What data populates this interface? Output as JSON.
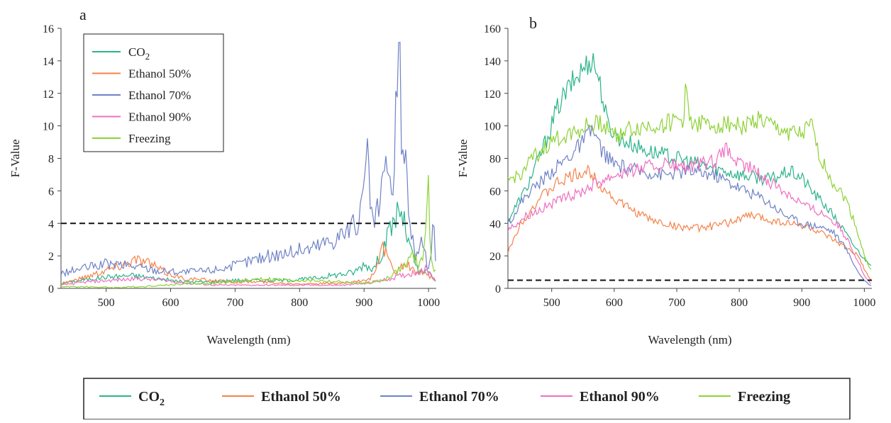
{
  "colors": {
    "CO2": "#2bb38a",
    "Ethanol 50%": "#f5824a",
    "Ethanol 70%": "#6f82c6",
    "Ethanol 90%": "#ee6fc0",
    "Freezing": "#8ed136",
    "threshold": "#111111"
  },
  "legend": {
    "entries": [
      {
        "key": "CO2",
        "main": "CO",
        "sub": "2"
      },
      {
        "key": "Ethanol 50%",
        "main": "Ethanol 50%",
        "sub": ""
      },
      {
        "key": "Ethanol 70%",
        "main": "Ethanol 70%",
        "sub": ""
      },
      {
        "key": "Ethanol 90%",
        "main": "Ethanol 90%",
        "sub": ""
      },
      {
        "key": "Freezing",
        "main": "Freezing",
        "sub": ""
      }
    ]
  },
  "chart_data": [
    {
      "panel": "a",
      "type": "line",
      "xlabel": "Wavelength (nm)",
      "ylabel": "F-Value",
      "xlim": [
        430,
        1012
      ],
      "ylim": [
        0,
        16
      ],
      "xticks": [
        500,
        600,
        700,
        800,
        900,
        1000
      ],
      "yticks": [
        0,
        2,
        4,
        6,
        8,
        10,
        12,
        14,
        16
      ],
      "legend_position": "top-left",
      "threshold": {
        "y": 4,
        "x_range": [
          430,
          995
        ],
        "style": "dashed"
      },
      "series": [
        {
          "name": "CO2",
          "points": [
            [
              430,
              0.3
            ],
            [
              460,
              0.5
            ],
            [
              500,
              0.7
            ],
            [
              540,
              0.8
            ],
            [
              580,
              0.6
            ],
            [
              620,
              0.4
            ],
            [
              660,
              0.4
            ],
            [
              700,
              0.5
            ],
            [
              740,
              0.5
            ],
            [
              780,
              0.5
            ],
            [
              820,
              0.6
            ],
            [
              850,
              0.8
            ],
            [
              870,
              0.9
            ],
            [
              885,
              1.0
            ],
            [
              900,
              1.5
            ],
            [
              915,
              1.2
            ],
            [
              925,
              2.0
            ],
            [
              935,
              3.0
            ],
            [
              945,
              4.0
            ],
            [
              955,
              5.0
            ],
            [
              962,
              4.0
            ],
            [
              968,
              3.0
            ],
            [
              975,
              2.0
            ],
            [
              985,
              1.0
            ],
            [
              1000,
              1.0
            ],
            [
              1010,
              0.5
            ]
          ]
        },
        {
          "name": "Ethanol 50%",
          "points": [
            [
              430,
              0.3
            ],
            [
              460,
              0.6
            ],
            [
              490,
              1.0
            ],
            [
              520,
              1.4
            ],
            [
              545,
              1.8
            ],
            [
              565,
              1.6
            ],
            [
              590,
              1.0
            ],
            [
              620,
              0.6
            ],
            [
              660,
              0.5
            ],
            [
              700,
              0.4
            ],
            [
              740,
              0.4
            ],
            [
              780,
              0.3
            ],
            [
              820,
              0.3
            ],
            [
              860,
              0.3
            ],
            [
              890,
              0.4
            ],
            [
              910,
              0.6
            ],
            [
              930,
              2.5
            ],
            [
              945,
              1.0
            ],
            [
              965,
              1.5
            ],
            [
              980,
              1.0
            ],
            [
              1000,
              0.8
            ],
            [
              1010,
              0.5
            ]
          ]
        },
        {
          "name": "Ethanol 70%",
          "points": [
            [
              430,
              0.9
            ],
            [
              460,
              1.2
            ],
            [
              500,
              1.5
            ],
            [
              540,
              1.4
            ],
            [
              580,
              1.1
            ],
            [
              620,
              1.0
            ],
            [
              660,
              1.1
            ],
            [
              700,
              1.4
            ],
            [
              740,
              1.9
            ],
            [
              780,
              2.2
            ],
            [
              820,
              2.5
            ],
            [
              850,
              3.0
            ],
            [
              870,
              3.5
            ],
            [
              885,
              3.8
            ],
            [
              895,
              4.5
            ],
            [
              905,
              7.8
            ],
            [
              915,
              3.5
            ],
            [
              925,
              5.5
            ],
            [
              935,
              8.0
            ],
            [
              942,
              5.0
            ],
            [
              948,
              9.0
            ],
            [
              955,
              15.0
            ],
            [
              960,
              7.0
            ],
            [
              965,
              9.5
            ],
            [
              970,
              4.0
            ],
            [
              980,
              2.0
            ],
            [
              990,
              3.0
            ],
            [
              1000,
              1.0
            ],
            [
              1008,
              4.0
            ],
            [
              1012,
              0.5
            ]
          ]
        },
        {
          "name": "Ethanol 90%",
          "points": [
            [
              430,
              0.2
            ],
            [
              470,
              0.4
            ],
            [
              510,
              0.5
            ],
            [
              550,
              0.6
            ],
            [
              590,
              0.5
            ],
            [
              630,
              0.3
            ],
            [
              670,
              0.2
            ],
            [
              710,
              0.2
            ],
            [
              750,
              0.2
            ],
            [
              790,
              0.2
            ],
            [
              830,
              0.2
            ],
            [
              870,
              0.2
            ],
            [
              900,
              0.3
            ],
            [
              930,
              0.5
            ],
            [
              960,
              0.8
            ],
            [
              980,
              1.0
            ],
            [
              995,
              1.2
            ],
            [
              1005,
              0.8
            ],
            [
              1012,
              0.4
            ]
          ]
        },
        {
          "name": "Freezing",
          "points": [
            [
              430,
              0.1
            ],
            [
              470,
              0.1
            ],
            [
              510,
              0.05
            ],
            [
              550,
              0.1
            ],
            [
              590,
              0.2
            ],
            [
              630,
              0.3
            ],
            [
              670,
              0.3
            ],
            [
              700,
              0.4
            ],
            [
              740,
              0.6
            ],
            [
              780,
              0.5
            ],
            [
              820,
              0.5
            ],
            [
              860,
              0.4
            ],
            [
              900,
              0.3
            ],
            [
              930,
              0.5
            ],
            [
              950,
              1.0
            ],
            [
              965,
              1.5
            ],
            [
              975,
              2.0
            ],
            [
              985,
              1.5
            ],
            [
              995,
              2.5
            ],
            [
              1000,
              7.9
            ],
            [
              1003,
              2.0
            ],
            [
              1010,
              1.0
            ]
          ]
        }
      ]
    },
    {
      "panel": "b",
      "type": "line",
      "xlabel": "Wavelength (nm)",
      "ylabel": "F-Value",
      "xlim": [
        430,
        1012
      ],
      "ylim": [
        0,
        160
      ],
      "xticks": [
        500,
        600,
        700,
        800,
        900,
        1000
      ],
      "yticks": [
        0,
        20,
        40,
        60,
        80,
        100,
        120,
        140,
        160
      ],
      "threshold": {
        "y": 5,
        "x_range": [
          430,
          1012
        ],
        "style": "dashed"
      },
      "series": [
        {
          "name": "CO2",
          "points": [
            [
              430,
              42
            ],
            [
              460,
              62
            ],
            [
              490,
              90
            ],
            [
              510,
              112
            ],
            [
              530,
              125
            ],
            [
              550,
              135
            ],
            [
              565,
              142
            ],
            [
              575,
              130
            ],
            [
              590,
              100
            ],
            [
              610,
              92
            ],
            [
              650,
              85
            ],
            [
              700,
              80
            ],
            [
              750,
              75
            ],
            [
              800,
              70
            ],
            [
              850,
              67
            ],
            [
              880,
              72
            ],
            [
              900,
              68
            ],
            [
              920,
              58
            ],
            [
              940,
              50
            ],
            [
              960,
              40
            ],
            [
              980,
              28
            ],
            [
              1000,
              18
            ],
            [
              1010,
              15
            ]
          ]
        },
        {
          "name": "Ethanol 50%",
          "points": [
            [
              430,
              22
            ],
            [
              450,
              40
            ],
            [
              480,
              55
            ],
            [
              510,
              65
            ],
            [
              540,
              70
            ],
            [
              560,
              72
            ],
            [
              575,
              65
            ],
            [
              600,
              55
            ],
            [
              630,
              48
            ],
            [
              660,
              42
            ],
            [
              700,
              38
            ],
            [
              740,
              37
            ],
            [
              780,
              40
            ],
            [
              800,
              43
            ],
            [
              820,
              45
            ],
            [
              850,
              42
            ],
            [
              880,
              40
            ],
            [
              910,
              38
            ],
            [
              940,
              32
            ],
            [
              970,
              25
            ],
            [
              990,
              20
            ],
            [
              1000,
              12
            ],
            [
              1010,
              5
            ]
          ]
        },
        {
          "name": "Ethanol 70%",
          "points": [
            [
              430,
              40
            ],
            [
              460,
              58
            ],
            [
              500,
              72
            ],
            [
              530,
              82
            ],
            [
              550,
              90
            ],
            [
              565,
              98
            ],
            [
              580,
              85
            ],
            [
              600,
              76
            ],
            [
              640,
              72
            ],
            [
              680,
              70
            ],
            [
              720,
              72
            ],
            [
              760,
              70
            ],
            [
              800,
              62
            ],
            [
              840,
              55
            ],
            [
              870,
              46
            ],
            [
              900,
              40
            ],
            [
              930,
              38
            ],
            [
              950,
              35
            ],
            [
              970,
              25
            ],
            [
              990,
              10
            ],
            [
              1000,
              5
            ],
            [
              1008,
              2
            ]
          ]
        },
        {
          "name": "Ethanol 90%",
          "points": [
            [
              430,
              36
            ],
            [
              460,
              45
            ],
            [
              500,
              52
            ],
            [
              540,
              58
            ],
            [
              570,
              65
            ],
            [
              600,
              70
            ],
            [
              640,
              74
            ],
            [
              680,
              76
            ],
            [
              720,
              74
            ],
            [
              760,
              78
            ],
            [
              780,
              85
            ],
            [
              800,
              76
            ],
            [
              820,
              74
            ],
            [
              850,
              65
            ],
            [
              880,
              58
            ],
            [
              910,
              50
            ],
            [
              940,
              45
            ],
            [
              960,
              38
            ],
            [
              980,
              25
            ],
            [
              1000,
              8
            ],
            [
              1010,
              3
            ]
          ]
        },
        {
          "name": "Freezing",
          "points": [
            [
              430,
              66
            ],
            [
              450,
              70
            ],
            [
              470,
              80
            ],
            [
              500,
              90
            ],
            [
              530,
              96
            ],
            [
              560,
              100
            ],
            [
              580,
              102
            ],
            [
              600,
              95
            ],
            [
              630,
              98
            ],
            [
              660,
              100
            ],
            [
              690,
              102
            ],
            [
              710,
              104
            ],
            [
              715,
              124
            ],
            [
              720,
              104
            ],
            [
              750,
              100
            ],
            [
              780,
              102
            ],
            [
              810,
              100
            ],
            [
              830,
              104
            ],
            [
              860,
              98
            ],
            [
              880,
              96
            ],
            [
              900,
              94
            ],
            [
              915,
              100
            ],
            [
              930,
              80
            ],
            [
              950,
              65
            ],
            [
              970,
              55
            ],
            [
              985,
              40
            ],
            [
              1000,
              20
            ],
            [
              1010,
              12
            ]
          ]
        }
      ]
    }
  ]
}
